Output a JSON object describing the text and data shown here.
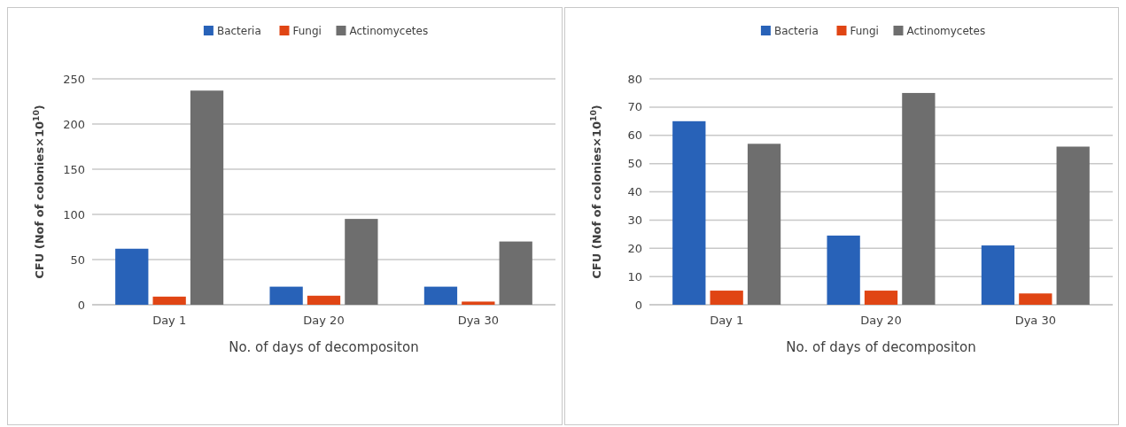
{
  "chart_data": [
    {
      "type": "bar",
      "categories": [
        "Day 1",
        "Day 20",
        "Dya 30"
      ],
      "xlabel": "No. of days of decompositon",
      "ylabel": "CFU (Nof of colonies×10$^{10}$)",
      "ylim": [
        0,
        250
      ],
      "yticks": [
        0,
        50,
        100,
        150,
        200,
        250
      ],
      "grid": "y",
      "legend": "top",
      "series": [
        {
          "name": "Bacteria",
          "color": "#2862b8",
          "values": [
            62,
            20,
            20
          ]
        },
        {
          "name": "Fungi",
          "color": "#e04514",
          "values": [
            9,
            10,
            3.5
          ]
        },
        {
          "name": "Actinomycetes",
          "color": "#6e6e6e",
          "values": [
            237,
            95,
            70
          ]
        }
      ]
    },
    {
      "type": "bar",
      "categories": [
        "Day 1",
        "Day 20",
        "Dya 30"
      ],
      "xlabel": "No. of days of decompositon",
      "ylabel": "CFU (Nof of colonies×10$^{10}$)",
      "ylim": [
        0,
        80
      ],
      "yticks": [
        0,
        10,
        20,
        30,
        40,
        50,
        60,
        70,
        80
      ],
      "grid": "y",
      "legend": "top",
      "series": [
        {
          "name": "Bacteria",
          "color": "#2862b8",
          "values": [
            65,
            24.5,
            21
          ]
        },
        {
          "name": "Fungi",
          "color": "#e04514",
          "values": [
            5,
            5,
            4
          ]
        },
        {
          "name": "Actinomycetes",
          "color": "#6e6e6e",
          "values": [
            57,
            75,
            56
          ]
        }
      ]
    }
  ]
}
